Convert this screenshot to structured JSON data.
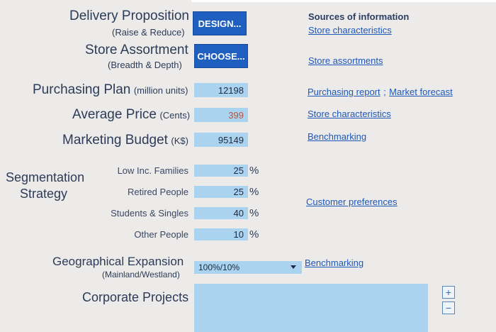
{
  "form": {
    "delivery": {
      "label": "Delivery Proposition",
      "sub": "(Raise & Reduce)",
      "button": "DESIGN..."
    },
    "assortment": {
      "label": "Store Assortment",
      "sub": "(Breadth & Depth)",
      "button": "CHOOSE..."
    },
    "purchasing": {
      "label": "Purchasing Plan",
      "unit": "(million units)",
      "value": "12198"
    },
    "price": {
      "label": "Average Price",
      "unit": "(Cents)",
      "value": "399"
    },
    "marketing": {
      "label": "Marketing Budget",
      "unit": "(K$)",
      "value": "95149"
    },
    "segmentation": {
      "label_line1": "Segmentation",
      "label_line2": "Strategy",
      "rows": [
        {
          "label": "Low Inc. Families",
          "value": "25",
          "unit": "%"
        },
        {
          "label": "Retired People",
          "value": "25",
          "unit": "%"
        },
        {
          "label": "Students & Singles",
          "value": "40",
          "unit": "%"
        },
        {
          "label": "Other People",
          "value": "10",
          "unit": "%"
        }
      ]
    },
    "geo": {
      "label": "Geographical Expansion",
      "sub": "(Mainland/Westland)",
      "selected": "100%/10%"
    },
    "corporate": {
      "label": "Corporate Projects"
    },
    "controls": {
      "plus": "+",
      "minus": "−"
    }
  },
  "sources": {
    "title": "Sources of information",
    "delivery_link": "Store characteristics",
    "assortment_link": "Store assortments",
    "purchasing_link1": "Purchasing report",
    "purchasing_sep": ";",
    "purchasing_link2": "Market forecast",
    "price_link": "Store characteristics",
    "marketing_link": "Benchmarking",
    "segmentation_link": "Customer preferences",
    "geo_link": "Benchmarking"
  }
}
